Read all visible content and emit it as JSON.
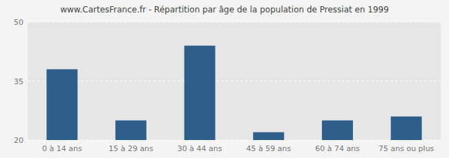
{
  "chart_data": {
    "type": "bar",
    "title": "www.CartesFrance.fr - Répartition par âge de la population de Pressiat en 1999",
    "categories": [
      "0 à 14 ans",
      "15 à 29 ans",
      "30 à 44 ans",
      "45 à 59 ans",
      "60 à 74 ans",
      "75 ans ou plus"
    ],
    "values": [
      38,
      25,
      44,
      22,
      25,
      26
    ],
    "color": "#2e5f8a",
    "ylim": [
      20,
      50
    ],
    "yticks": [
      20,
      35,
      50
    ],
    "grid": true
  }
}
